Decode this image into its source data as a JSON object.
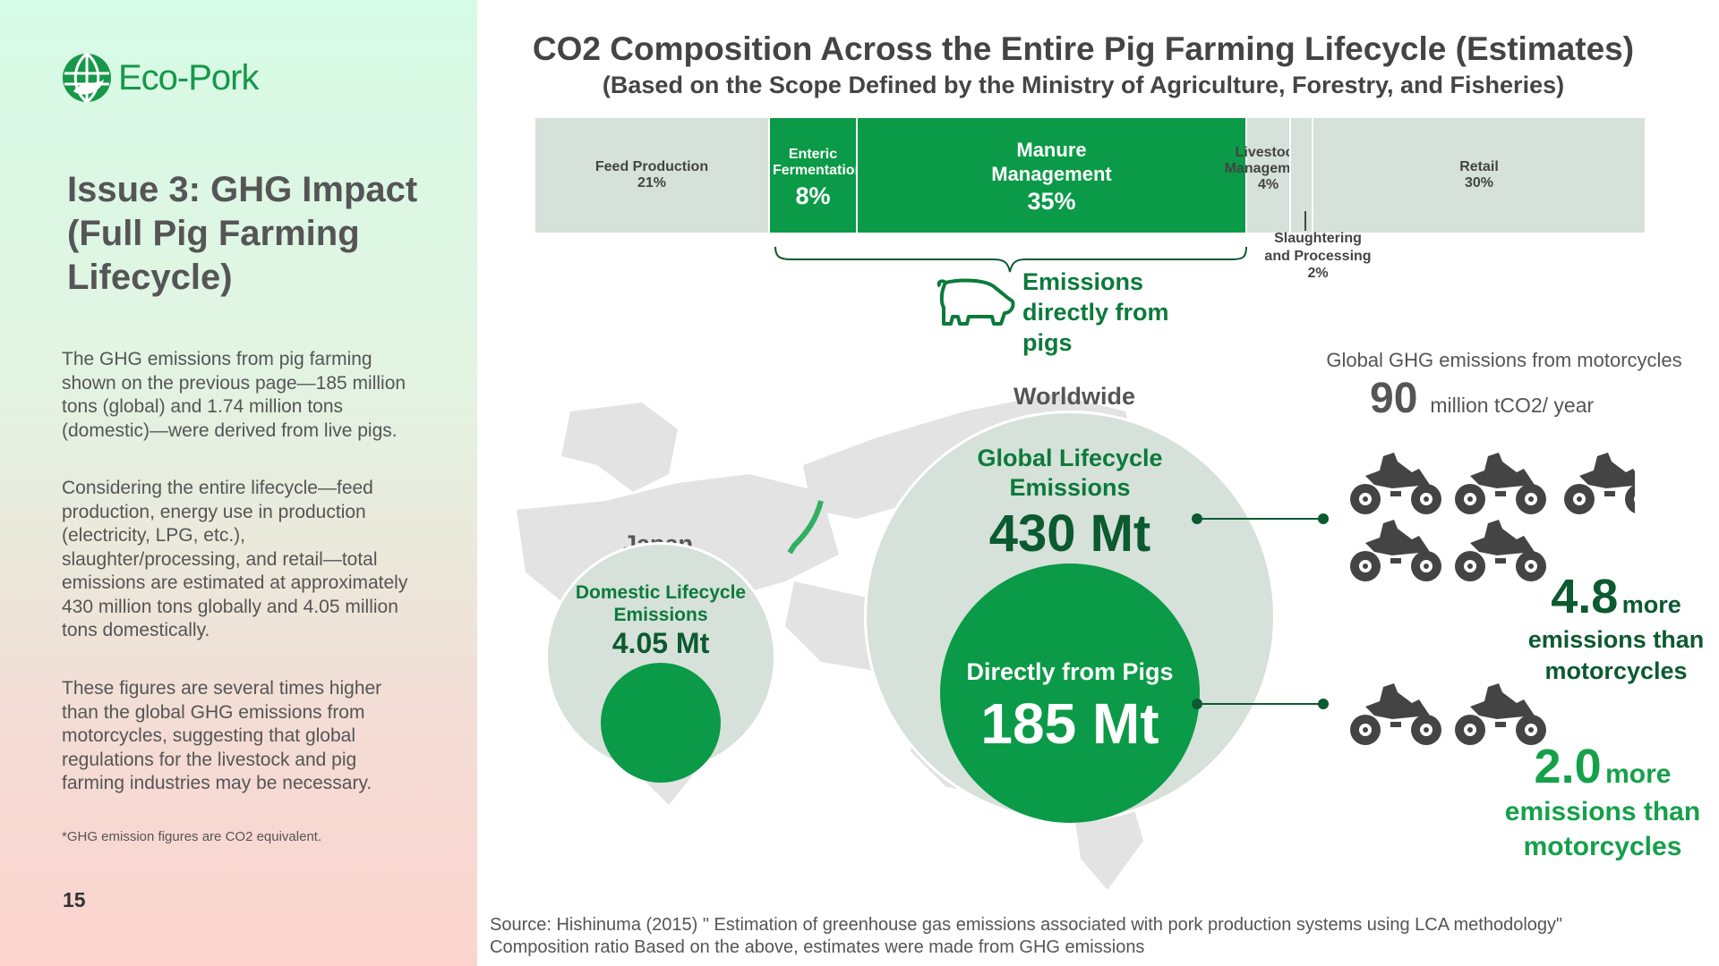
{
  "logo": {
    "text": "Eco-Pork"
  },
  "sidebar": {
    "heading": "Issue 3: GHG Impact (Full Pig Farming Lifecycle)",
    "paragraphs": [
      "The GHG emissions from pig farming shown on the previous page—185 million tons (global) and 1.74 million tons (domestic)—were derived from live pigs.",
      "Considering the entire lifecycle—feed production, energy use in production (electricity, LPG, etc.), slaughter/processing, and retail—total emissions are estimated at approximately 430 million tons globally and 4.05 million tons domestically.",
      "These figures are several times higher than the global GHG emissions from motorcycles, suggesting that global regulations for the livestock and pig farming industries may be necessary."
    ],
    "footnote": "*GHG emission figures are CO2 equivalent.",
    "page_number": "15"
  },
  "main": {
    "title": "CO2 Composition Across the Entire Pig Farming Lifecycle (Estimates)",
    "subtitle": "(Based on the Scope Defined by the Ministry of Agriculture, Forestry, and Fisheries)",
    "composition": [
      {
        "label": "Feed Production",
        "value": "21%"
      },
      {
        "label": "Enteric Fermentation",
        "value": "8%"
      },
      {
        "label": "Manure Management",
        "value": "35%"
      },
      {
        "label": "Livestock Management",
        "value": "4%"
      },
      {
        "label": "Slaughtering and Processing",
        "value": "2%"
      },
      {
        "label": "Retail",
        "value": "30%"
      }
    ],
    "direct_label": "Emissions directly from pigs",
    "worldwide": {
      "label": "Worldwide",
      "outer_label": "Global Lifecycle Emissions",
      "outer_value": "430 Mt",
      "inner_label": "Directly from Pigs",
      "inner_value": "185 Mt"
    },
    "japan": {
      "label": "Japan",
      "outer_label": "Domestic Lifecycle Emissions",
      "outer_value": "4.05 Mt"
    },
    "motorcycles": {
      "label": "Global GHG emissions from motorcycles",
      "value": "90",
      "unit": "million tCO2/ year"
    },
    "comparisons": [
      {
        "ratio": "4.8",
        "more": "more",
        "text": "emissions than motorcycles"
      },
      {
        "ratio": "2.0",
        "more": "more",
        "text": "emissions than motorcycles"
      }
    ],
    "source": "Source: Hishinuma (2015) \" Estimation of greenhouse gas emissions associated with pork production systems using LCA methodology\" Composition ratio Based on the above, estimates were made from GHG emissions"
  },
  "colors": {
    "green": "#0b9a47",
    "dark_green": "#0b7a3b",
    "light": "#d6e1d9"
  }
}
